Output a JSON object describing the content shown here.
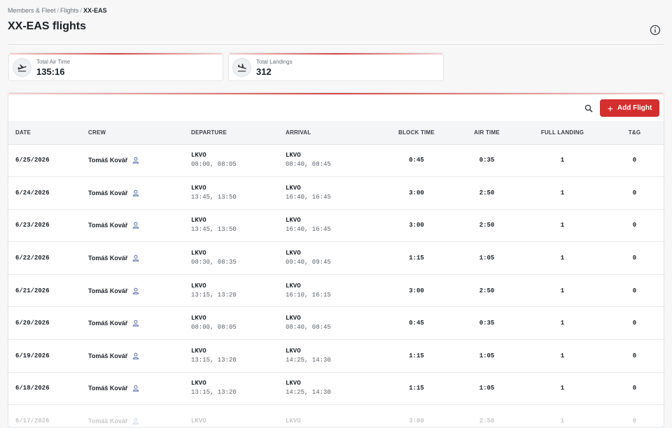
{
  "breadcrumb": {
    "members": "Members & Fleet",
    "flights": "Flights",
    "current": "XX-EAS",
    "sep": "/"
  },
  "page_title": "XX-EAS flights",
  "stats": [
    {
      "label": "Total Air Time",
      "value": "135:16",
      "icon": "plane-takeoff-icon"
    },
    {
      "label": "Total Landings",
      "value": "312",
      "icon": "plane-landing-icon"
    }
  ],
  "toolbar": {
    "add_label": "Add Flight",
    "search_icon": "search-icon"
  },
  "accent_color": "#d32f2f",
  "table": {
    "headers": {
      "date": "DATE",
      "crew": "CREW",
      "departure": "DEPARTURE",
      "arrival": "ARRIVAL",
      "block": "BLOCK TIME",
      "air": "AIR TIME",
      "full": "FULL LANDING",
      "tg": "T&G"
    },
    "rows": [
      {
        "date": "6/25/2026",
        "crew": "Tomáš Kovář",
        "dep_ap": "LKVO",
        "dep_t": "08:00, 08:05",
        "arr_ap": "LKVO",
        "arr_t": "08:40, 08:45",
        "block": "0:45",
        "air": "0:35",
        "full": "1",
        "tg": "0"
      },
      {
        "date": "6/24/2026",
        "crew": "Tomáš Kovář",
        "dep_ap": "LKVO",
        "dep_t": "13:45, 13:50",
        "arr_ap": "LKVO",
        "arr_t": "16:40, 16:45",
        "block": "3:00",
        "air": "2:50",
        "full": "1",
        "tg": "0"
      },
      {
        "date": "6/23/2026",
        "crew": "Tomáš Kovář",
        "dep_ap": "LKVO",
        "dep_t": "13:45, 13:50",
        "arr_ap": "LKVO",
        "arr_t": "16:40, 16:45",
        "block": "3:00",
        "air": "2:50",
        "full": "1",
        "tg": "0"
      },
      {
        "date": "6/22/2026",
        "crew": "Tomáš Kovář",
        "dep_ap": "LKVO",
        "dep_t": "08:30, 08:35",
        "arr_ap": "LKVO",
        "arr_t": "09:40, 09:45",
        "block": "1:15",
        "air": "1:05",
        "full": "1",
        "tg": "0"
      },
      {
        "date": "6/21/2026",
        "crew": "Tomáš Kovář",
        "dep_ap": "LKVO",
        "dep_t": "13:15, 13:20",
        "arr_ap": "LKVO",
        "arr_t": "16:10, 16:15",
        "block": "3:00",
        "air": "2:50",
        "full": "1",
        "tg": "0"
      },
      {
        "date": "6/20/2026",
        "crew": "Tomáš Kovář",
        "dep_ap": "LKVO",
        "dep_t": "08:00, 08:05",
        "arr_ap": "LKVO",
        "arr_t": "08:40, 08:45",
        "block": "0:45",
        "air": "0:35",
        "full": "1",
        "tg": "0"
      },
      {
        "date": "6/19/2026",
        "crew": "Tomáš Kovář",
        "dep_ap": "LKVO",
        "dep_t": "13:15, 13:20",
        "arr_ap": "LKVO",
        "arr_t": "14:25, 14:30",
        "block": "1:15",
        "air": "1:05",
        "full": "1",
        "tg": "0"
      },
      {
        "date": "6/18/2026",
        "crew": "Tomáš Kovář",
        "dep_ap": "LKVO",
        "dep_t": "13:15, 13:20",
        "arr_ap": "LKVO",
        "arr_t": "14:25, 14:30",
        "block": "1:15",
        "air": "1:05",
        "full": "1",
        "tg": "0"
      },
      {
        "date": "6/17/2026",
        "crew": "Tomáš Kovář",
        "dep_ap": "LKVO",
        "dep_t": "",
        "arr_ap": "LKVO",
        "arr_t": "",
        "block": "3:00",
        "air": "2:50",
        "full": "1",
        "tg": "0"
      }
    ]
  }
}
